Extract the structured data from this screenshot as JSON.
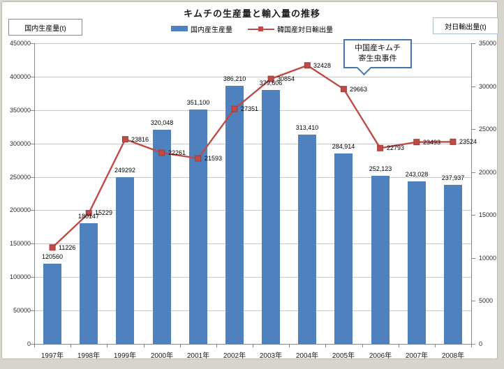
{
  "chart": {
    "title": "キムチの生産量と輸入量の推移",
    "left_axis_box_label": "国内生産量(t)",
    "right_axis_box_label": "対日輸出量(t)",
    "annotation": {
      "lines": [
        "中国産キムチ",
        "寄生虫事件"
      ]
    }
  },
  "chart_data": {
    "type": "bar",
    "subtype": "bar+line combo, dual axis",
    "title": "キムチの生産量と輸入量の推移",
    "categories": [
      "1997年",
      "1998年",
      "1999年",
      "2000年",
      "2001年",
      "2002年",
      "2003年",
      "2004年",
      "2005年",
      "2006年",
      "2007年",
      "2008年"
    ],
    "series": [
      {
        "name": "国内産生産量",
        "type": "bar",
        "axis": "left",
        "color": "#4E81BD",
        "values": [
          120560,
          180147,
          249292,
          320048,
          351100,
          386210,
          379606,
          313410,
          284914,
          252123,
          243028,
          237937
        ],
        "labels": [
          "120560",
          "180147",
          "249292",
          "320,048",
          "351,100",
          "386,210",
          "379,606",
          "313,410",
          "284,914",
          "252,123",
          "243,028",
          "237,937"
        ]
      },
      {
        "name": "韓国産対日輸出量",
        "type": "line",
        "axis": "right",
        "color": "#be4b48",
        "values": [
          11226,
          15229,
          23816,
          22261,
          21593,
          27351,
          30854,
          32428,
          29663,
          22793,
          23493,
          23524
        ],
        "labels": [
          "11226",
          "15229",
          "23816",
          "22261",
          "21593",
          "27351",
          "30854",
          "32428",
          "29663",
          "22793",
          "23493",
          "23524"
        ]
      }
    ],
    "left_axis": {
      "label": "国内生産量(t)",
      "min": 0,
      "max": 450000,
      "step": 50000
    },
    "right_axis": {
      "label": "対日輸出量(t)",
      "min": 0,
      "max": 35000,
      "step": 5000
    },
    "grid": true,
    "legend_position": "top",
    "annotation": "中国産キムチ寄生虫事件"
  }
}
